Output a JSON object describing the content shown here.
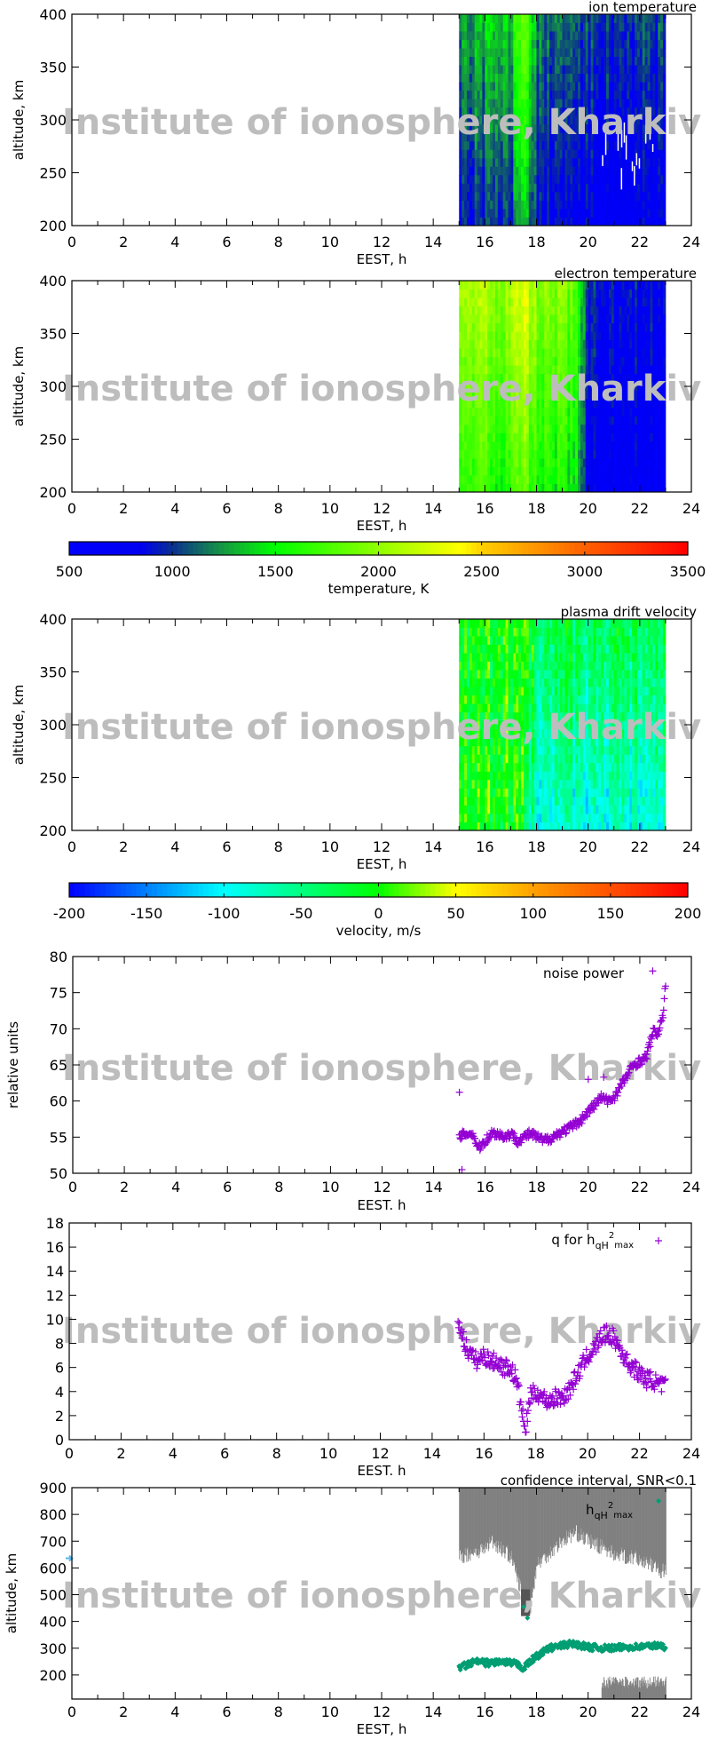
{
  "watermark": "Institute of ionosphere, Kharkiv",
  "colors": {
    "noise": "#9400d3",
    "q": "#9400d3",
    "hmax": "#009e73",
    "confidence": "#808080",
    "arrow": "#56b4e9"
  },
  "chart_data": [
    {
      "type": "heatmap",
      "title": "ion temperature",
      "xlabel": "EEST, h",
      "ylabel": "altitude, km",
      "xlim": [
        0,
        24
      ],
      "ylim": [
        200,
        400
      ],
      "xticks": [
        "0",
        "2",
        "4",
        "6",
        "8",
        "10",
        "12",
        "14",
        "16",
        "18",
        "20",
        "22",
        "24"
      ],
      "yticks": [
        "200",
        "250",
        "300",
        "350",
        "400"
      ],
      "data_range_x": [
        15,
        23
      ],
      "x": [
        15,
        16,
        17,
        17.5,
        18,
        19,
        20,
        21,
        22,
        23
      ],
      "values": [
        1100,
        1100,
        1150,
        1600,
        1050,
        950,
        900,
        850,
        850,
        850
      ],
      "colorbar": "temperature"
    },
    {
      "type": "heatmap",
      "title": "electron temperature",
      "xlabel": "EEST, h",
      "ylabel": "altitude, km",
      "xlim": [
        0,
        24
      ],
      "ylim": [
        200,
        400
      ],
      "xticks": [
        "0",
        "2",
        "4",
        "6",
        "8",
        "10",
        "12",
        "14",
        "16",
        "18",
        "20",
        "22",
        "24"
      ],
      "yticks": [
        "200",
        "250",
        "300",
        "350",
        "400"
      ],
      "data_range_x": [
        15,
        23
      ],
      "x": [
        15,
        16,
        17,
        17.5,
        18,
        19,
        19.5,
        20,
        21,
        22,
        23
      ],
      "values": [
        1900,
        1800,
        1800,
        2000,
        1750,
        1700,
        1600,
        800,
        750,
        750,
        750
      ],
      "colorbar": "temperature"
    },
    {
      "type": "colorbar",
      "label": "temperature, K",
      "range": [
        500,
        3500
      ],
      "ticks": [
        "500",
        "1000",
        "1500",
        "2000",
        "2500",
        "3000",
        "3500"
      ]
    },
    {
      "type": "heatmap",
      "title": "plasma drift velocity",
      "xlabel": "EEST, h",
      "ylabel": "altitude, km",
      "xlim": [
        0,
        24
      ],
      "ylim": [
        200,
        400
      ],
      "xticks": [
        "0",
        "2",
        "4",
        "6",
        "8",
        "10",
        "12",
        "14",
        "16",
        "18",
        "20",
        "22",
        "24"
      ],
      "yticks": [
        "200",
        "250",
        "300",
        "350",
        "400"
      ],
      "data_range_x": [
        15,
        23
      ],
      "x": [
        15,
        16,
        17,
        17.5,
        18,
        19,
        20,
        21,
        22,
        23
      ],
      "values": [
        -10,
        0,
        0,
        20,
        -20,
        -30,
        -30,
        -30,
        -30,
        -30
      ],
      "colorbar": "velocity"
    },
    {
      "type": "colorbar",
      "label": "velocity, m/s",
      "range": [
        -200,
        200
      ],
      "ticks": [
        "-200",
        "-150",
        "-100",
        "-50",
        "0",
        "50",
        "100",
        "150",
        "200"
      ]
    },
    {
      "type": "scatter",
      "legend": "noise power",
      "xlabel": "EEST. h",
      "ylabel": "relative units",
      "xlim": [
        0,
        24
      ],
      "ylim": [
        50,
        80
      ],
      "xticks": [
        "0",
        "2",
        "4",
        "6",
        "8",
        "10",
        "12",
        "14",
        "16",
        "18",
        "20",
        "22",
        "24"
      ],
      "yticks": [
        "50",
        "55",
        "60",
        "65",
        "70",
        "75",
        "80"
      ],
      "x": [
        15,
        15.25,
        15.5,
        15.75,
        16,
        16.25,
        16.5,
        16.75,
        17,
        17.25,
        17.5,
        17.75,
        18,
        18.25,
        18.5,
        18.75,
        19,
        19.25,
        19.5,
        19.75,
        20,
        20.25,
        20.5,
        20.75,
        21,
        21.25,
        21.5,
        21.75,
        22,
        22.25,
        22.5,
        22.75,
        22.9,
        23
      ],
      "y": [
        55,
        55.5,
        55.5,
        53.5,
        54.5,
        55.5,
        55.5,
        55,
        55.5,
        54.5,
        55,
        55.5,
        55,
        54.5,
        54.8,
        55.3,
        55.8,
        56.2,
        56.8,
        57.5,
        58.5,
        59.5,
        60.5,
        60,
        60.5,
        62,
        63.5,
        65,
        65.5,
        66,
        69.5,
        69.5,
        72,
        76
      ],
      "outliers": [
        [
          15,
          61.2
        ],
        [
          15.1,
          50.5
        ],
        [
          22.5,
          78
        ],
        [
          20,
          63
        ],
        [
          20.6,
          63.3
        ]
      ]
    },
    {
      "type": "scatter",
      "legend": {
        "base": "q for h",
        "sub": "qH",
        "sup": "2",
        "sub2": "max"
      },
      "xlabel": "EEST. h",
      "ylabel": "",
      "xlim": [
        0,
        24
      ],
      "ylim": [
        0,
        18
      ],
      "xticks": [
        "0",
        "2",
        "4",
        "6",
        "8",
        "10",
        "12",
        "14",
        "16",
        "18",
        "20",
        "22",
        "24"
      ],
      "yticks": [
        "0",
        "2",
        "4",
        "6",
        "8",
        "10",
        "12",
        "14",
        "16",
        "18"
      ],
      "x": [
        15,
        15.25,
        15.5,
        15.75,
        16,
        16.25,
        16.5,
        16.75,
        17,
        17.25,
        17.5,
        17.6,
        17.75,
        18,
        18.25,
        18.5,
        18.75,
        19,
        19.25,
        19.5,
        19.75,
        20,
        20.25,
        20.5,
        20.75,
        21,
        21.25,
        21.5,
        21.75,
        22,
        22.25,
        22.5,
        22.75,
        23
      ],
      "y": [
        10,
        8,
        7,
        6.5,
        7,
        6.5,
        6.5,
        6,
        6,
        5,
        2,
        0.5,
        3.5,
        4,
        3.5,
        3.2,
        3.5,
        3.5,
        4,
        5,
        6,
        7,
        7.5,
        8.5,
        8.8,
        8.5,
        7.5,
        6.5,
        6,
        5.5,
        5,
        5,
        4.5,
        4.5
      ]
    },
    {
      "type": "scatter",
      "title": "confidence interval, SNR<0.1",
      "legend": {
        "base": "h",
        "sub": "qH",
        "sup": "2",
        "sub2": "max"
      },
      "xlabel": "EEST, h",
      "ylabel": "altitude, km",
      "xlim": [
        0,
        24
      ],
      "ylim": [
        110,
        900
      ],
      "xticks": [
        "0",
        "2",
        "4",
        "6",
        "8",
        "10",
        "12",
        "14",
        "16",
        "18",
        "20",
        "22",
        "24"
      ],
      "yticks": [
        "200",
        "300",
        "400",
        "500",
        "600",
        "700",
        "800",
        "900"
      ],
      "x": [
        15,
        15.25,
        15.5,
        15.75,
        16,
        16.25,
        16.5,
        16.75,
        17,
        17.25,
        17.5,
        17.75,
        18,
        18.25,
        18.5,
        18.75,
        19,
        19.25,
        19.5,
        19.75,
        20,
        20.5,
        21,
        21.5,
        22,
        22.5,
        23
      ],
      "y": [
        230,
        235,
        245,
        250,
        245,
        245,
        250,
        245,
        245,
        240,
        225,
        250,
        270,
        285,
        300,
        305,
        310,
        315,
        315,
        310,
        305,
        300,
        300,
        305,
        305,
        310,
        305
      ],
      "outliers": [
        [
          17.5,
          455
        ],
        [
          17.65,
          413
        ],
        [
          0,
          636
        ]
      ],
      "confidence_upper": 900,
      "confidence_lower": {
        "x": [
          15,
          16,
          16.25,
          17,
          17.5,
          17.75,
          18,
          19,
          19.5,
          20,
          21,
          22,
          23
        ],
        "y": [
          630,
          660,
          690,
          630,
          470,
          440,
          600,
          690,
          720,
          690,
          640,
          620,
          570
        ]
      }
    }
  ]
}
